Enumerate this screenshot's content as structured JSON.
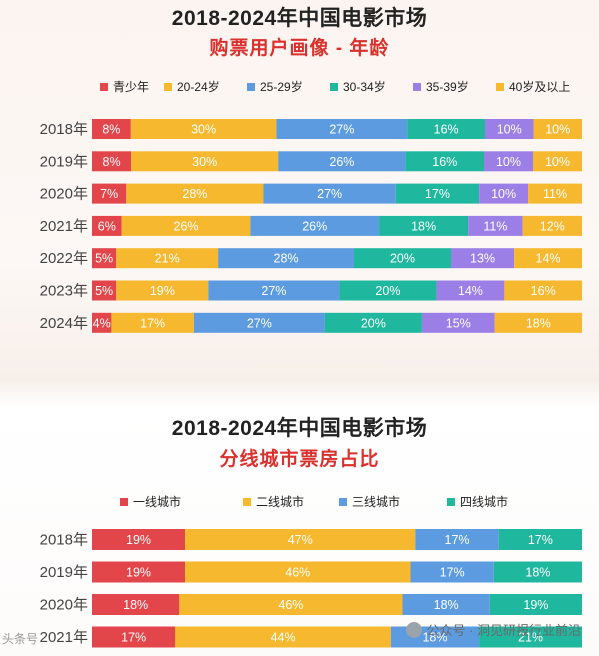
{
  "chart_data": [
    {
      "type": "bar",
      "stacked": true,
      "orientation": "horizontal",
      "title": "2018-2024年中国电影市场",
      "subtitle": "购票用户画像 - 年龄",
      "legend_position": "top",
      "categories": [
        "2018年",
        "2019年",
        "2020年",
        "2021年",
        "2022年",
        "2023年",
        "2024年"
      ],
      "series": [
        {
          "name": "青少年",
          "color": "#e2454a",
          "values": [
            8,
            8,
            7,
            6,
            5,
            5,
            4
          ]
        },
        {
          "name": "20-24岁",
          "color": "#f5b82e",
          "values": [
            30,
            30,
            28,
            26,
            21,
            19,
            17
          ]
        },
        {
          "name": "25-29岁",
          "color": "#5c9be0",
          "values": [
            27,
            26,
            27,
            26,
            28,
            27,
            27
          ]
        },
        {
          "name": "30-34岁",
          "color": "#1fb79e",
          "values": [
            16,
            16,
            17,
            18,
            20,
            20,
            20
          ]
        },
        {
          "name": "35-39岁",
          "color": "#9b7fe6",
          "values": [
            10,
            10,
            10,
            11,
            13,
            14,
            15
          ]
        },
        {
          "name": "40岁及以上",
          "color": "#f5b82e",
          "values": [
            10,
            10,
            11,
            12,
            14,
            16,
            18
          ]
        }
      ],
      "value_suffix": "%"
    },
    {
      "type": "bar",
      "stacked": true,
      "orientation": "horizontal",
      "title": "2018-2024年中国电影市场",
      "subtitle": "分线城市票房占比",
      "legend_position": "top",
      "categories": [
        "2018年",
        "2019年",
        "2020年",
        "2021年"
      ],
      "series": [
        {
          "name": "一线城市",
          "color": "#e2454a",
          "values": [
            19,
            19,
            18,
            17
          ]
        },
        {
          "name": "二线城市",
          "color": "#f5b82e",
          "values": [
            47,
            46,
            46,
            44
          ]
        },
        {
          "name": "三线城市",
          "color": "#5c9be0",
          "values": [
            17,
            17,
            18,
            18
          ]
        },
        {
          "name": "四线城市",
          "color": "#1fb79e",
          "values": [
            17,
            18,
            19,
            21
          ]
        }
      ],
      "value_suffix": "%"
    }
  ],
  "watermark": {
    "text": "公众号 · 洞见研报行业前沿",
    "left_text": "头条号"
  }
}
